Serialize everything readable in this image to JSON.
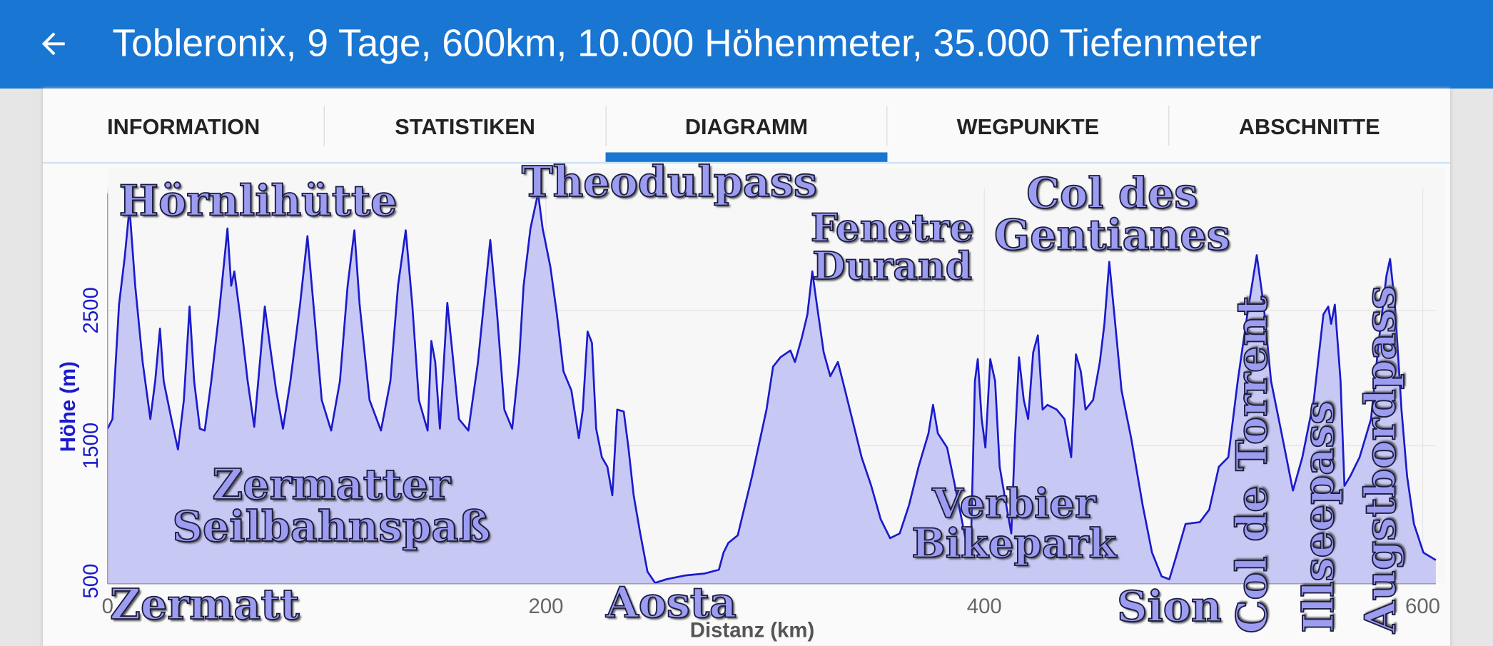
{
  "app": {
    "title": "Tobleronix, 9 Tage, 600km, 10.000 Höhenmeter, 35.000 Tiefenmeter",
    "tabs": [
      "INFORMATION",
      "STATISTIKEN",
      "DIAGRAMM",
      "WEGPUNKTE",
      "ABSCHNITTE"
    ],
    "selected_tab": 2
  },
  "chart_data": {
    "type": "area",
    "xlabel": "Distanz (km)",
    "ylabel": "Höhe (m)",
    "xlim": [
      0,
      606
    ],
    "ylim": [
      480,
      3400
    ],
    "xticks": [
      0,
      200,
      400,
      600
    ],
    "yticks": [
      500,
      1500,
      2500
    ],
    "grid": true,
    "x": [
      0,
      2.2,
      5.2,
      7.8,
      10,
      12.6,
      16,
      19.5,
      21.7,
      23.9,
      25.6,
      29.1,
      32.1,
      34.8,
      37.4,
      39.5,
      42.1,
      44.3,
      47.3,
      50.8,
      54.7,
      56.4,
      57.8,
      60.4,
      63.9,
      66.9,
      69.5,
      71.7,
      73.9,
      76.9,
      80,
      83.4,
      87.8,
      91.2,
      94.3,
      97.7,
      102,
      106,
      109.5,
      112.6,
      115,
      119.5,
      124.7,
      129,
      132.5,
      136,
      139,
      142,
      146,
      147.7,
      149.5,
      151.6,
      155,
      157.3,
      160.3,
      164.6,
      169,
      174.6,
      177.7,
      181,
      184.6,
      187.7,
      189.8,
      192.9,
      196.4,
      198.5,
      202,
      205,
      208,
      211.6,
      215,
      216.8,
      219,
      221,
      222.9,
      225.5,
      228,
      230.3,
      232.5,
      235.5,
      237.6,
      240,
      243,
      246.3,
      249.8,
      255,
      263.7,
      272.4,
      278.9,
      281,
      283.2,
      287.5,
      294,
      300.6,
      303.6,
      307,
      311.5,
      313.6,
      316.7,
      319.3,
      321.5,
      323.6,
      326.7,
      329.7,
      333.2,
      335.4,
      339.7,
      344,
      348.4,
      352.7,
      357,
      361.4,
      365.7,
      370,
      374.5,
      376.6,
      378.8,
      383,
      387.5,
      391.8,
      394,
      395.7,
      397,
      398.8,
      400.5,
      402.7,
      404.9,
      407,
      409.2,
      412.3,
      414,
      415.8,
      418,
      420,
      422.3,
      424.4,
      426.6,
      428.8,
      433,
      436.6,
      439.6,
      441.8,
      444,
      446.2,
      449.6,
      452.7,
      454.8,
      457,
      459.3,
      462.6,
      467,
      472.2,
      476.5,
      480.9,
      484.4,
      487.4,
      491.8,
      498.3,
      502.6,
      507,
      511.3,
      515.6,
      520,
      524.3,
      527.4,
      530.8,
      535.2,
      540.8,
      545.1,
      550.3,
      554.7,
      556.9,
      558.2,
      559.9,
      562.5,
      564.3,
      566.9,
      571.2,
      576.4,
      579.9,
      583.4,
      585.1,
      587.3,
      590.3,
      592.9,
      596,
      600.3,
      606
    ],
    "series": [
      {
        "color": "#1a1acc",
        "fill": "#c8c8f4",
        "values": [
          1626,
          1697,
          2542,
          2894,
          3260,
          2682,
          2119,
          1697,
          1978,
          2366,
          1978,
          1697,
          1472,
          1838,
          2528,
          1978,
          1626,
          1612,
          1978,
          2471,
          3105,
          2682,
          2788,
          2471,
          1978,
          1640,
          2119,
          2528,
          2260,
          1908,
          1626,
          1978,
          2542,
          3049,
          2471,
          1838,
          1612,
          1978,
          2682,
          3091,
          2542,
          1838,
          1612,
          1978,
          2682,
          3091,
          2542,
          1838,
          1612,
          2274,
          2119,
          1626,
          2556,
          2190,
          1697,
          1612,
          2119,
          3020,
          2471,
          1767,
          1626,
          2119,
          2682,
          3105,
          3366,
          3105,
          2823,
          2471,
          2049,
          1908,
          1556,
          1767,
          2344,
          2260,
          1626,
          1415,
          1345,
          1134,
          1767,
          1753,
          1486,
          1134,
          852,
          570,
          486,
          514,
          542,
          556,
          584,
          711,
          782,
          838,
          1274,
          1767,
          2084,
          2154,
          2204,
          2119,
          2295,
          2471,
          2788,
          2542,
          2190,
          2014,
          2119,
          1978,
          1697,
          1415,
          1204,
          958,
          817,
          852,
          1063,
          1345,
          1591,
          1802,
          1591,
          1486,
          1134,
          782,
          852,
          1978,
          2140,
          1697,
          1486,
          2140,
          1978,
          1345,
          1134,
          852,
          1556,
          2154,
          1838,
          1697,
          2190,
          2316,
          1767,
          1802,
          1767,
          1697,
          1415,
          2175,
          2049,
          1767,
          1838,
          2119,
          2401,
          2858,
          2471,
          1908,
          1556,
          1063,
          711,
          535,
          514,
          676,
          922,
          936,
          1028,
          1345,
          1415,
          1978,
          2471,
          2908,
          2542,
          1978,
          1626,
          1169,
          1415,
          1838,
          2471,
          2528,
          2401,
          2542,
          1978,
          1204,
          1274,
          1415,
          1697,
          2260,
          2753,
          2880,
          2542,
          1767,
          1274,
          922,
          711,
          655
        ]
      }
    ],
    "annotations": [
      "Hörnlihütte",
      "Theodulpass",
      "Fenetre\nDurand",
      "Col des\nGentianes",
      "Zermatter\nSeilbahnspaß",
      "Verbier\nBikepark",
      "Zermatt",
      "Aosta",
      "Sion",
      "Col de Torrent",
      "Illseepass",
      "Augstbordpass"
    ]
  }
}
